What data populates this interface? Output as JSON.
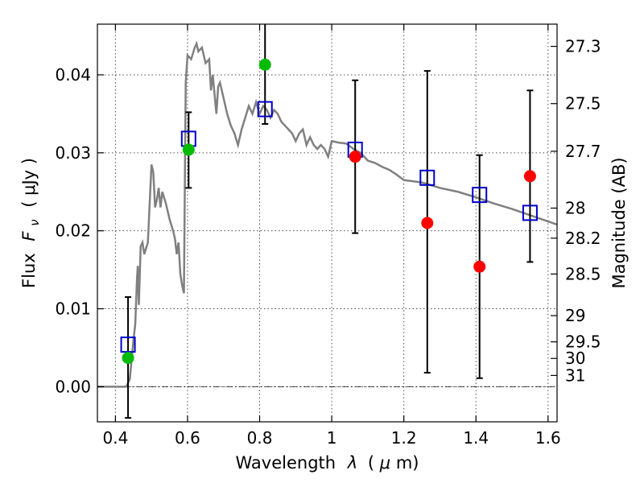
{
  "chart_data": {
    "type": "scatter",
    "xlabel": "Wavelength",
    "xlabel_symbol": "λ",
    "xlabel_unit_open": "(",
    "xlabel_unit_mu": "μ",
    "xlabel_unit_rest": "m)",
    "ylabel": "Flux",
    "ylabel_symbol": "F",
    "ylabel_subscript": "ν",
    "ylabel_unit": "( μJy )",
    "y2label": "Magnitude (AB)",
    "xlim": [
      0.35,
      1.625
    ],
    "ylim": [
      -0.0045,
      0.0465
    ],
    "grid": true,
    "x_ticks": [
      0.4,
      0.6,
      0.8,
      1.0,
      1.2,
      1.4,
      1.6
    ],
    "x_tick_labels": [
      "0.4",
      "0.6",
      "0.8",
      "1",
      "1.2",
      "1.4",
      "1.6"
    ],
    "y_ticks": [
      0.0,
      0.01,
      0.02,
      0.03,
      0.04
    ],
    "y_tick_labels": [
      "0.00",
      "0.01",
      "0.02",
      "0.03",
      "0.04"
    ],
    "y2_ticks": [
      27.3,
      27.5,
      27.7,
      28,
      28.2,
      28.5,
      29,
      29.5,
      30,
      31
    ],
    "y2_tick_labels": [
      "27.3",
      "27.5",
      "27.7",
      "28",
      "28.2",
      "28.5",
      "29",
      "29.5",
      "30",
      "31"
    ],
    "colors": {
      "model": "#808080",
      "model_photometry": "#0000cc",
      "measured_green": "#00bb00",
      "measured_red": "#ff0000",
      "errorbar": "#000000"
    },
    "model_spectrum": {
      "x": [
        0.35,
        0.43,
        0.44,
        0.45,
        0.455,
        0.46,
        0.462,
        0.465,
        0.47,
        0.475,
        0.48,
        0.49,
        0.495,
        0.5,
        0.505,
        0.51,
        0.515,
        0.52,
        0.525,
        0.53,
        0.54,
        0.55,
        0.56,
        0.565,
        0.57,
        0.575,
        0.58,
        0.585,
        0.59,
        0.595,
        0.6,
        0.61,
        0.62,
        0.625,
        0.63,
        0.64,
        0.645,
        0.65,
        0.66,
        0.665,
        0.67,
        0.68,
        0.685,
        0.69,
        0.7,
        0.71,
        0.72,
        0.73,
        0.74,
        0.75,
        0.76,
        0.77,
        0.78,
        0.79,
        0.8,
        0.81,
        0.82,
        0.83,
        0.84,
        0.85,
        0.86,
        0.87,
        0.88,
        0.89,
        0.9,
        0.91,
        0.92,
        0.93,
        0.94,
        0.95,
        0.96,
        0.97,
        0.98,
        0.985,
        0.99,
        1.0,
        1.02,
        1.04,
        1.06,
        1.08,
        1.1,
        1.12,
        1.14,
        1.16,
        1.18,
        1.2,
        1.25,
        1.3,
        1.35,
        1.4,
        1.45,
        1.5,
        1.55,
        1.6,
        1.625
      ],
      "y": [
        0.0,
        0.0,
        0.001,
        0.006,
        0.008,
        0.014,
        0.0155,
        0.0105,
        0.018,
        0.0185,
        0.017,
        0.0185,
        0.0235,
        0.0285,
        0.0275,
        0.023,
        0.024,
        0.0255,
        0.023,
        0.025,
        0.0235,
        0.0215,
        0.02,
        0.019,
        0.017,
        0.0185,
        0.0145,
        0.013,
        0.012,
        0.039,
        0.0425,
        0.042,
        0.0435,
        0.044,
        0.043,
        0.0435,
        0.0425,
        0.0415,
        0.042,
        0.038,
        0.04,
        0.035,
        0.0385,
        0.039,
        0.037,
        0.035,
        0.0335,
        0.0325,
        0.031,
        0.033,
        0.0345,
        0.036,
        0.035,
        0.0365,
        0.035,
        0.036,
        0.0355,
        0.0345,
        0.0355,
        0.035,
        0.034,
        0.0335,
        0.033,
        0.0325,
        0.0315,
        0.0325,
        0.033,
        0.031,
        0.032,
        0.031,
        0.0305,
        0.031,
        0.0305,
        0.03,
        0.0295,
        0.0315,
        0.0313,
        0.0312,
        0.0305,
        0.03,
        0.029,
        0.0287,
        0.0282,
        0.0278,
        0.0272,
        0.0265,
        0.0262,
        0.0255,
        0.025,
        0.0243,
        0.0235,
        0.0228,
        0.022,
        0.0212,
        0.0208
      ]
    },
    "model_photometry": {
      "x": [
        0.435,
        0.603,
        0.815,
        1.065,
        1.265,
        1.41,
        1.55
      ],
      "y": [
        0.0054,
        0.0318,
        0.0356,
        0.0304,
        0.0268,
        0.0246,
        0.0223
      ]
    },
    "measured": {
      "x": [
        0.435,
        0.603,
        0.815,
        1.065,
        1.265,
        1.41,
        1.55
      ],
      "y": [
        0.0037,
        0.0304,
        0.0413,
        0.0295,
        0.021,
        0.0154,
        0.027
      ],
      "yerr_low": [
        0.0077,
        0.0049,
        0.0076,
        0.0098,
        0.0192,
        0.0143,
        0.011
      ],
      "yerr_high": [
        0.0078,
        0.0048,
        0.0068,
        0.0098,
        0.0195,
        0.0143,
        0.011
      ],
      "point_colors": [
        "green",
        "green",
        "green",
        "red",
        "red",
        "red",
        "red"
      ]
    }
  }
}
